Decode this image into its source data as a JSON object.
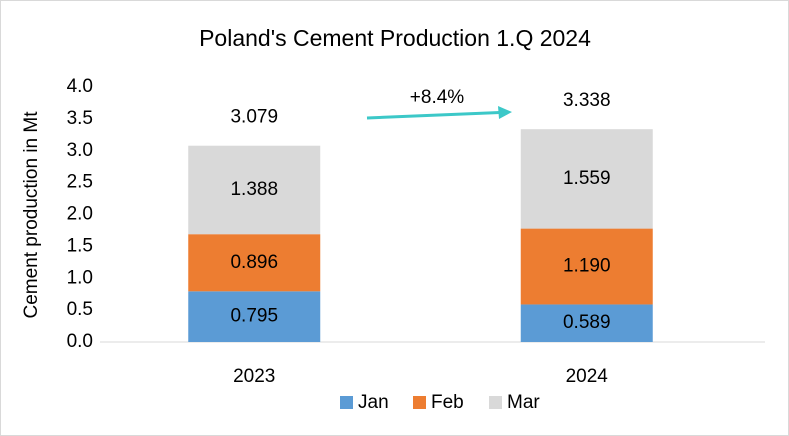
{
  "chart_data": {
    "type": "stacked_bar",
    "title": "Poland's Cement Production 1.Q 2024",
    "y_label": "Cement production in Mt",
    "categories": [
      "2023",
      "2024"
    ],
    "series": [
      {
        "name": "Jan",
        "color": "#5b9bd5",
        "values": [
          0.795,
          0.589
        ]
      },
      {
        "name": "Feb",
        "color": "#ed7d31",
        "values": [
          0.896,
          1.19
        ],
        "value_labels": [
          "0.896",
          "1.190"
        ]
      },
      {
        "name": "Mar",
        "color": "#d9d9d9",
        "values": [
          1.388,
          1.559
        ]
      }
    ],
    "totals": [
      3.079,
      3.338
    ],
    "annotation": "+8.4%",
    "annotation_color": "#3cc8c8",
    "ylim": [
      0,
      4
    ],
    "yticks": [
      {
        "value": 0,
        "label": "0.0"
      },
      {
        "value": 0.5,
        "label": "0.5"
      },
      {
        "value": 1,
        "label": "1.0"
      },
      {
        "value": 1.5,
        "label": "1.5"
      },
      {
        "value": 2,
        "label": "2.0"
      },
      {
        "value": 2.5,
        "label": "2.5"
      },
      {
        "value": 3,
        "label": "3.0"
      },
      {
        "value": 3.5,
        "label": "3.5"
      },
      {
        "value": 4,
        "label": "4.0"
      }
    ],
    "grid": false,
    "legend": "bottom"
  }
}
